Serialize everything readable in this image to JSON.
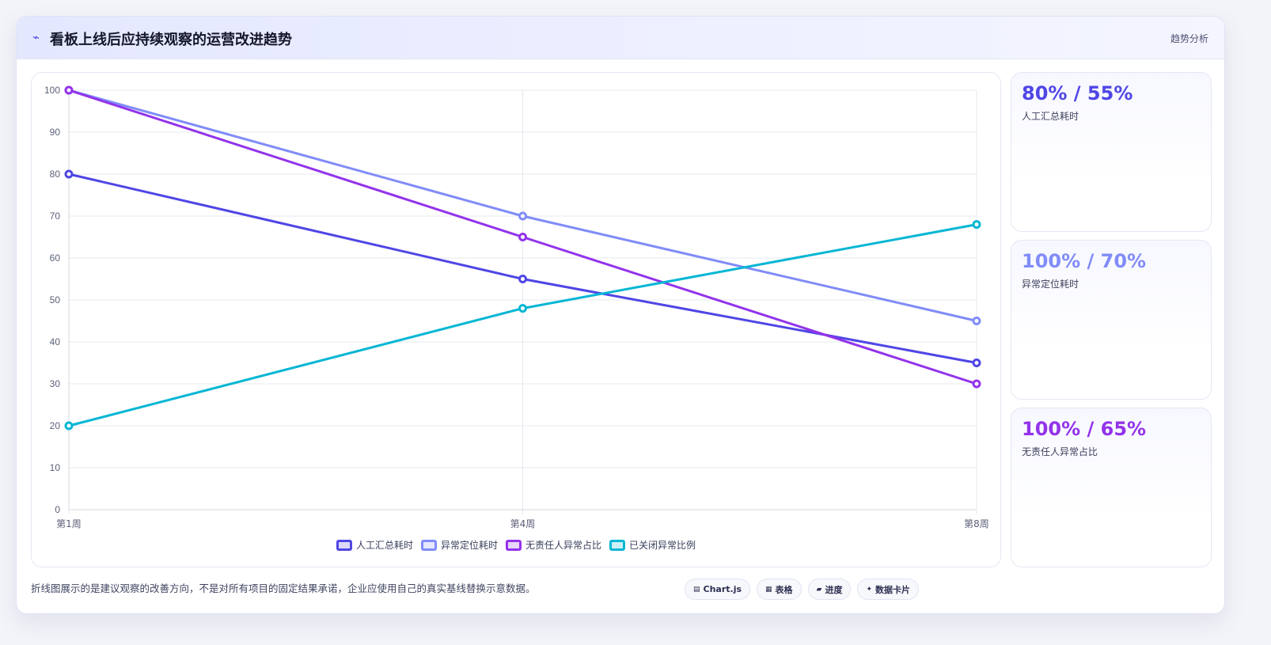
{
  "header": {
    "icon": "lightning-icon",
    "title": "看板上线后应持续观察的运营改进趋势",
    "tag": "趋势分析"
  },
  "chart_data": {
    "type": "line",
    "categories": [
      "第1周",
      "第4周",
      "第8周"
    ],
    "ylim": [
      0,
      100
    ],
    "yticks": [
      0,
      10,
      20,
      30,
      40,
      50,
      60,
      70,
      80,
      90,
      100
    ],
    "grid": true,
    "legend_position": "bottom",
    "series": [
      {
        "name": "人工汇总耗时",
        "values": [
          80,
          55,
          35
        ],
        "color": "#4f46e5"
      },
      {
        "name": "异常定位耗时",
        "values": [
          100,
          70,
          45
        ],
        "color": "#818cf8"
      },
      {
        "name": "无责任人异常占比",
        "values": [
          100,
          65,
          30
        ],
        "color": "#9333ea"
      },
      {
        "name": "已关闭异常比例",
        "values": [
          20,
          48,
          68
        ],
        "color": "#06b6d4"
      }
    ]
  },
  "kpis": [
    {
      "value": "80% / 55%",
      "label": "人工汇总耗时",
      "color": "#4f46e5"
    },
    {
      "value": "100% / 70%",
      "label": "异常定位耗时",
      "color": "#818cf8"
    },
    {
      "value": "100% / 65%",
      "label": "无责任人异常占比",
      "color": "#9333ea"
    }
  ],
  "footnote": "折线图展示的是建议观察的改善方向，不是对所有项目的固定结果承诺，企业应使用自己的真实基线替换示意数据。",
  "pills": [
    {
      "icon": "chart-icon",
      "glyph": "▤",
      "label": "Chart.js"
    },
    {
      "icon": "table-icon",
      "glyph": "▦",
      "label": "表格"
    },
    {
      "icon": "progress-icon",
      "glyph": "▰",
      "label": "进度"
    },
    {
      "icon": "card-icon",
      "glyph": "✦",
      "label": "数据卡片"
    }
  ]
}
